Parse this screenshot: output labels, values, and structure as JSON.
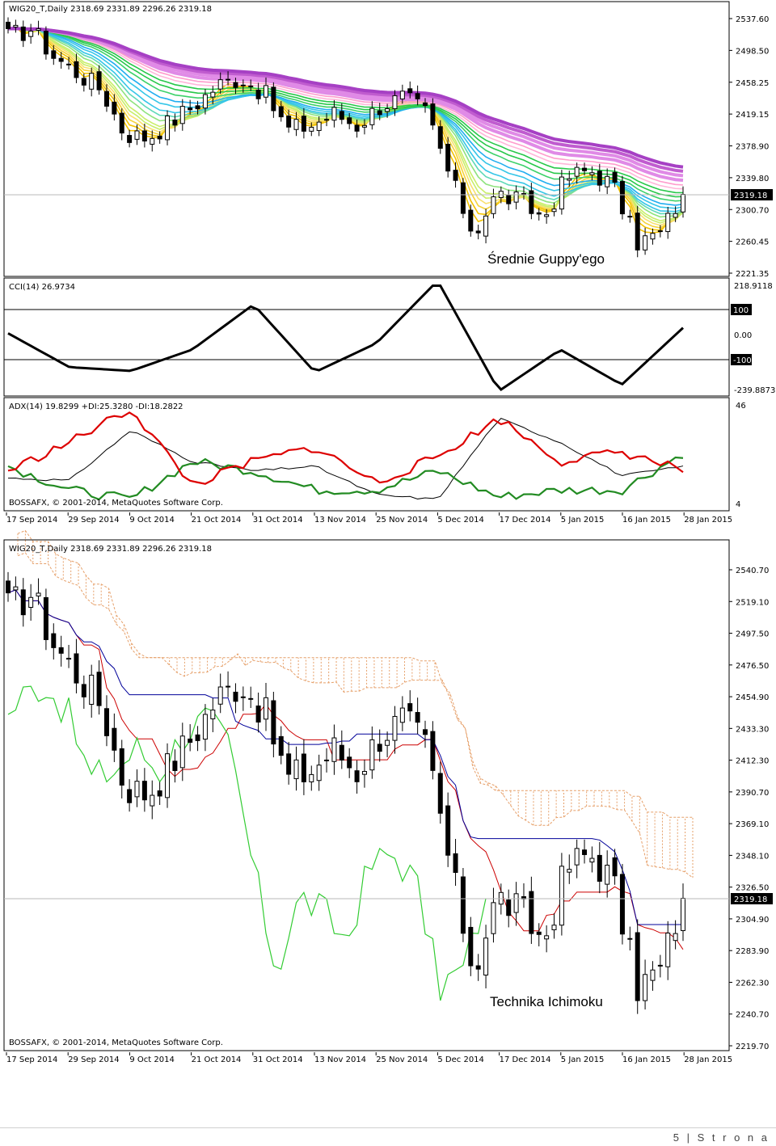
{
  "colors": {
    "bull": "#ffffff",
    "bear": "#000000",
    "cci": "#000000",
    "adx": "#000000",
    "plus_di": "#228b22",
    "minus_di": "#dd0000",
    "tenkan": "#cc0000",
    "kijun": "#000099",
    "chikou": "#33cc33",
    "cloud": "#e6a06a"
  },
  "chart1": {
    "header": "WIG20_T,Daily  2318.69 2331.89 2296.26 2319.18",
    "annotation": "Średnie Guppy'ego",
    "price_labels": [
      "2537.60",
      "2498.50",
      "2458.25",
      "2419.15",
      "2378.90",
      "2339.80",
      "2300.70",
      "2260.45",
      "2221.35"
    ],
    "current_price": "2319.18",
    "cci_header": "CCI(14) 26.9734",
    "cci_labels": [
      "218.9118",
      "100",
      "0.00",
      "-100",
      "-239.8873"
    ],
    "adx_header": "ADX(14) 19.8299 +DI:25.3280 -DI:18.2822",
    "adx_labels": [
      "46",
      "4"
    ],
    "copyright": "BOSSAFX, © 2001-2014, MetaQuotes Software Corp."
  },
  "chart2": {
    "header": "WIG20_T,Daily  2318.69 2331.89 2296.26 2319.18",
    "annotation": "Technika Ichimoku",
    "price_labels": [
      "2540.70",
      "2519.10",
      "2497.50",
      "2476.50",
      "2454.90",
      "2433.30",
      "2412.30",
      "2390.70",
      "2369.10",
      "2348.10",
      "2326.50",
      "2304.90",
      "2283.90",
      "2262.30",
      "2240.70",
      "2219.70"
    ],
    "current_price": "2319.18",
    "copyright": "BOSSAFX, © 2001-2014, MetaQuotes Software Corp."
  },
  "date_labels": [
    "17 Sep 2014",
    "29 Sep 2014",
    "9 Oct 2014",
    "21 Oct 2014",
    "31 Oct 2014",
    "13 Nov 2014",
    "25 Nov 2014",
    "5 Dec 2014",
    "17 Dec 2014",
    "5 Jan 2015",
    "16 Jan 2015",
    "28 Jan 2015"
  ],
  "page_footer": "5 | S t r o n a",
  "chart_data": [
    {
      "type": "candlestick",
      "title": "WIG20_T,Daily",
      "x": [
        "17 Sep 2014",
        "29 Sep 2014",
        "9 Oct 2014",
        "21 Oct 2014",
        "31 Oct 2014",
        "13 Nov 2014",
        "25 Nov 2014",
        "5 Dec 2014",
        "17 Dec 2014",
        "5 Jan 2015",
        "16 Jan 2015",
        "28 Jan 2015"
      ],
      "close": [
        2515,
        2490,
        2395,
        2430,
        2465,
        2400,
        2430,
        2440,
        2300,
        2330,
        2260,
        2319.18
      ],
      "ylim": [
        2221.35,
        2558
      ],
      "last": {
        "open": 2318.69,
        "high": 2331.89,
        "low": 2296.26,
        "close": 2319.18
      },
      "overlay": "Guppy multiple moving averages"
    },
    {
      "type": "line",
      "title": "CCI(14)",
      "x": [
        "17 Sep 2014",
        "29 Sep 2014",
        "9 Oct 2014",
        "21 Oct 2014",
        "31 Oct 2014",
        "13 Nov 2014",
        "25 Nov 2014",
        "5 Dec 2014",
        "17 Dec 2014",
        "5 Jan 2015",
        "16 Jan 2015",
        "28 Jan 2015"
      ],
      "values": [
        5,
        -130,
        -145,
        -60,
        120,
        -150,
        -35,
        215,
        -225,
        -60,
        -200,
        27
      ],
      "ylim": [
        -239.8873,
        218.9118
      ],
      "levels": [
        100,
        -100
      ]
    },
    {
      "type": "line",
      "title": "ADX(14)",
      "x": [
        "17 Sep 2014",
        "29 Sep 2014",
        "9 Oct 2014",
        "21 Oct 2014",
        "31 Oct 2014",
        "13 Nov 2014",
        "25 Nov 2014",
        "5 Dec 2014",
        "17 Dec 2014",
        "5 Jan 2015",
        "16 Jan 2015",
        "28 Jan 2015"
      ],
      "series": [
        {
          "name": "ADX(14)",
          "values": [
            15,
            14,
            35,
            22,
            18,
            20,
            8,
            6,
            40,
            30,
            16,
            19.8299
          ]
        },
        {
          "name": "+DI",
          "values": [
            20,
            10,
            6,
            22,
            18,
            10,
            10,
            18,
            7,
            10,
            10,
            25.328
          ]
        },
        {
          "name": "-DI",
          "values": [
            18,
            30,
            44,
            12,
            22,
            28,
            13,
            24,
            40,
            22,
            26,
            18.2822
          ]
        }
      ],
      "ylim": [
        4,
        46
      ]
    },
    {
      "type": "candlestick",
      "title": "WIG20_T,Daily",
      "x": [
        "17 Sep 2014",
        "29 Sep 2014",
        "9 Oct 2014",
        "21 Oct 2014",
        "31 Oct 2014",
        "13 Nov 2014",
        "25 Nov 2014",
        "5 Dec 2014",
        "17 Dec 2014",
        "5 Jan 2015",
        "16 Jan 2015",
        "28 Jan 2015"
      ],
      "close": [
        2520,
        2475,
        2395,
        2430,
        2460,
        2405,
        2430,
        2440,
        2300,
        2340,
        2255,
        2319.18
      ],
      "ylim": [
        2219.7,
        2552
      ],
      "overlay": "Ichimoku (Tenkan, Kijun, Chikou, cloud)"
    }
  ]
}
